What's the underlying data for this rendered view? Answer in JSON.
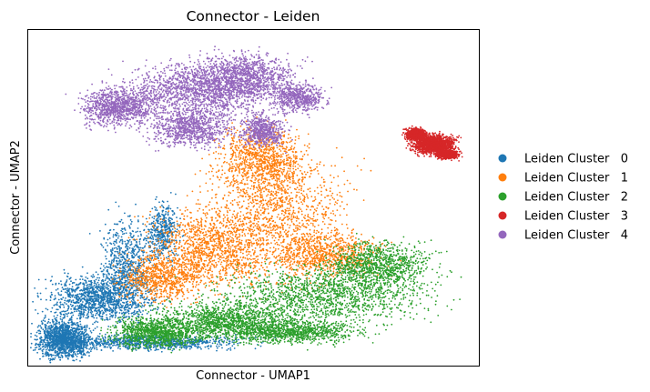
{
  "chart_data": {
    "type": "scatter",
    "title": "Connector - Leiden",
    "xlabel": "Connector - UMAP1",
    "ylabel": "Connector - UMAP2",
    "ticks": "none",
    "grid": false,
    "legend_placement": "right",
    "series": [
      {
        "name": "Leiden Cluster   0",
        "color": "#1f77b4",
        "blobs": [
          [
            0.16,
            0.2,
            0.1,
            0.06,
            0.9
          ],
          [
            0.08,
            0.08,
            0.05,
            0.05,
            1.0
          ],
          [
            0.28,
            0.07,
            0.18,
            0.02,
            0.6
          ],
          [
            0.22,
            0.3,
            0.05,
            0.12,
            0.5
          ],
          [
            0.3,
            0.4,
            0.03,
            0.07,
            0.3
          ]
        ]
      },
      {
        "name": "Leiden Cluster   1",
        "color": "#ff7f0e",
        "blobs": [
          [
            0.55,
            0.45,
            0.14,
            0.17,
            1.0
          ],
          [
            0.4,
            0.35,
            0.12,
            0.1,
            0.8
          ],
          [
            0.52,
            0.62,
            0.08,
            0.08,
            0.6
          ],
          [
            0.3,
            0.26,
            0.08,
            0.06,
            0.5
          ],
          [
            0.67,
            0.33,
            0.1,
            0.06,
            0.5
          ]
        ]
      },
      {
        "name": "Leiden Cluster   2",
        "color": "#2ca02c",
        "blobs": [
          [
            0.66,
            0.21,
            0.2,
            0.07,
            1.0
          ],
          [
            0.44,
            0.13,
            0.14,
            0.05,
            1.0
          ],
          [
            0.28,
            0.1,
            0.08,
            0.04,
            0.7
          ],
          [
            0.78,
            0.3,
            0.1,
            0.06,
            0.7
          ],
          [
            0.6,
            0.1,
            0.12,
            0.03,
            0.6
          ]
        ]
      },
      {
        "name": "Leiden Cluster   3",
        "color": "#d62728",
        "blobs": [
          [
            0.9,
            0.66,
            0.04,
            0.025,
            1.0
          ],
          [
            0.86,
            0.69,
            0.02,
            0.015,
            0.5
          ],
          [
            0.93,
            0.63,
            0.02,
            0.012,
            0.5
          ]
        ]
      },
      {
        "name": "Leiden Cluster   4",
        "color": "#9467bd",
        "blobs": [
          [
            0.38,
            0.82,
            0.14,
            0.07,
            1.0
          ],
          [
            0.2,
            0.77,
            0.07,
            0.05,
            0.7
          ],
          [
            0.48,
            0.86,
            0.1,
            0.06,
            0.8
          ],
          [
            0.36,
            0.71,
            0.08,
            0.05,
            0.6
          ],
          [
            0.52,
            0.7,
            0.04,
            0.04,
            0.4
          ],
          [
            0.6,
            0.8,
            0.05,
            0.04,
            0.4
          ]
        ]
      }
    ]
  }
}
